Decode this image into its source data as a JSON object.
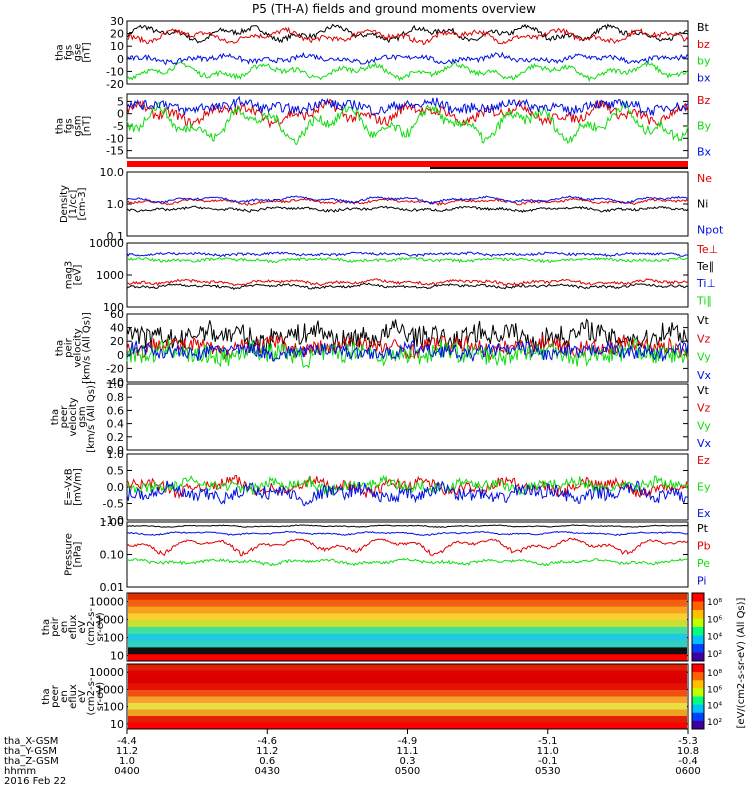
{
  "title": "P5 (TH-A) fields and ground moments overview",
  "colors": {
    "black": "#000000",
    "red": "#e00000",
    "green": "#10dd10",
    "blue": "#0010e0"
  },
  "chart_data": [
    {
      "type": "line",
      "id": "fgs_gse",
      "ylabel_lines": [
        "tha",
        "fgs",
        "gse",
        "[nT]"
      ],
      "ylim": [
        -20,
        30
      ],
      "yticks": [
        "30",
        "20",
        "10",
        "0",
        "-10",
        "-20"
      ],
      "series": [
        {
          "name": "Bt",
          "color": "black",
          "base": 20,
          "amp": 6,
          "noise": 1
        },
        {
          "name": "bz",
          "color": "red",
          "base": 18,
          "amp": 5,
          "noise": 1
        },
        {
          "name": "by",
          "color": "green",
          "base": -10,
          "amp": 6,
          "noise": 1
        },
        {
          "name": "bx",
          "color": "blue",
          "base": 0,
          "amp": 3,
          "noise": 1
        }
      ]
    },
    {
      "type": "line",
      "id": "fgs_gsm",
      "ylabel_lines": [
        "tha",
        "fgs",
        "gsm",
        "[nT]"
      ],
      "ylim": [
        -18,
        8
      ],
      "yticks": [
        "5",
        "0",
        "-5",
        "-10",
        "-15"
      ],
      "series": [
        {
          "name": "Bz",
          "color": "red",
          "base": 0,
          "amp": 4,
          "noise": 1
        },
        {
          "name": "By",
          "color": "green",
          "base": -4,
          "amp": 7,
          "noise": 1
        },
        {
          "name": "Bx",
          "color": "blue",
          "base": 3,
          "amp": 2,
          "noise": 1
        }
      ]
    },
    {
      "type": "line",
      "id": "density",
      "scale": "log",
      "ylabel_lines": [
        "Density",
        "[1/cc]",
        "[cm-3]"
      ],
      "ylim": [
        0.1,
        10
      ],
      "yticks": [
        "10.0",
        "1.0",
        "0.1"
      ],
      "series": [
        {
          "name": "Ne",
          "color": "red",
          "base": 1.2,
          "amp": 0.2,
          "noise": 0.05
        },
        {
          "name": "Ni",
          "color": "black",
          "base": 0.7,
          "amp": 0.1,
          "noise": 0.03
        },
        {
          "name": "Npot",
          "color": "blue",
          "base": 1.4,
          "amp": 0.3,
          "noise": 0.05
        }
      ]
    },
    {
      "type": "line",
      "id": "temp",
      "scale": "log",
      "ylabel_lines": [
        "mag3",
        "[eV]"
      ],
      "ylim": [
        100,
        10000
      ],
      "yticks": [
        "10000",
        "1000",
        "100"
      ],
      "series": [
        {
          "name": "Te⊥",
          "color": "red",
          "base": 600,
          "amp": 100,
          "noise": 30
        },
        {
          "name": "Te∥",
          "color": "black",
          "base": 450,
          "amp": 60,
          "noise": 20
        },
        {
          "name": "Ti⊥",
          "color": "blue",
          "base": 4500,
          "amp": 400,
          "noise": 200
        },
        {
          "name": "Ti∥",
          "color": "green",
          "base": 3000,
          "amp": 300,
          "noise": 150
        }
      ]
    },
    {
      "type": "line",
      "id": "peir_velocity",
      "ylabel_lines": [
        "tha",
        "peir",
        "velocity",
        "[km/s (All Qs)]"
      ],
      "ylim": [
        -40,
        60
      ],
      "yticks": [
        "60",
        "40",
        "20",
        "0",
        "-20",
        "-40"
      ],
      "series": [
        {
          "name": "Vt",
          "color": "black",
          "base": 28,
          "amp": 10,
          "noise": 8
        },
        {
          "name": "Vz",
          "color": "red",
          "base": 12,
          "amp": 8,
          "noise": 6
        },
        {
          "name": "Vy",
          "color": "green",
          "base": 2,
          "amp": 8,
          "noise": 7
        },
        {
          "name": "Vx",
          "color": "blue",
          "base": 5,
          "amp": 6,
          "noise": 5
        }
      ]
    },
    {
      "type": "line",
      "id": "peer_velocity",
      "ylabel_lines": [
        "tha",
        "peer",
        "velocity",
        "gsm",
        "[km/s (All Qs)]"
      ],
      "ylim": [
        0,
        1
      ],
      "yticks": [
        "1.0",
        "0.8",
        "0.6",
        "0.4",
        "0.2",
        "0.0"
      ],
      "series": [
        {
          "name": "Vt",
          "color": "black"
        },
        {
          "name": "Vz",
          "color": "red"
        },
        {
          "name": "Vy",
          "color": "green"
        },
        {
          "name": "Vx",
          "color": "blue"
        }
      ]
    },
    {
      "type": "line",
      "id": "efield",
      "ylabel_lines": [
        "E=-VxB",
        "[mV/m]"
      ],
      "ylim": [
        -1,
        1
      ],
      "yticks": [
        "1.0",
        "0.5",
        "0.0",
        "-0.5",
        "-1.0"
      ],
      "series": [
        {
          "name": "Ez",
          "color": "red",
          "base": 0.02,
          "amp": 0.2,
          "noise": 0.08
        },
        {
          "name": "Ey",
          "color": "green",
          "base": 0.05,
          "amp": 0.15,
          "noise": 0.08
        },
        {
          "name": "Ex",
          "color": "blue",
          "base": -0.2,
          "amp": 0.2,
          "noise": 0.1
        }
      ]
    },
    {
      "type": "line",
      "id": "pressure",
      "scale": "log",
      "ylabel_lines": [
        "Pressure",
        "[nPa]"
      ],
      "ylim": [
        0.01,
        1
      ],
      "yticks": [
        "1.00",
        "0.10",
        "0.01"
      ],
      "series": [
        {
          "name": "Pt",
          "color": "black",
          "base": 0.75,
          "amp": 0.05,
          "noise": 0.01
        },
        {
          "name": "Pb",
          "color": "red",
          "base": 0.2,
          "amp": 0.1,
          "noise": 0.01
        },
        {
          "name": "Pe",
          "color": "green",
          "base": 0.06,
          "amp": 0.01,
          "noise": 0.003
        },
        {
          "name": "Pi",
          "color": "blue",
          "base": 0.45,
          "amp": 0.05,
          "noise": 0.01
        }
      ]
    },
    {
      "type": "heatmap",
      "id": "peir_eflux",
      "scale": "log",
      "ylabel_lines": [
        "tha",
        "peir",
        "en",
        "eflux",
        "eV",
        "(cm2-s-",
        "sr-eV)"
      ],
      "ylim": [
        5,
        30000
      ],
      "yticks": [
        "10000",
        "1000",
        "100",
        "10"
      ]
    },
    {
      "type": "heatmap",
      "id": "peer_eflux",
      "scale": "log",
      "ylabel_lines": [
        "tha",
        "peer",
        "en",
        "eflux",
        "eV",
        "(cm2-s-",
        "sr-eV)"
      ],
      "ylim": [
        5,
        30000
      ],
      "yticks": [
        "10000",
        "1000",
        "100",
        "10"
      ]
    }
  ],
  "colorbar": {
    "label": "[eV/(cm2-s-sr-eV) (All Qs)]",
    "top_ticks": [
      "10⁸",
      "10⁶",
      "10⁴",
      "10²"
    ],
    "bottom_ticks": [
      "10⁸",
      "10⁶",
      "10⁴",
      "10²"
    ]
  },
  "x_axis": {
    "row_labels": [
      "tha_X-GSM",
      "tha_Y-GSM",
      "tha_Z-GSM",
      "hhmm",
      "2016 Feb 22"
    ],
    "columns": [
      [
        "-4.4",
        "11.2",
        "1.0",
        "0400"
      ],
      [
        "-4.6",
        "11.2",
        "0.6",
        "0430"
      ],
      [
        "-4.9",
        "11.1",
        "0.3",
        "0500"
      ],
      [
        "-5.1",
        "11.0",
        "-0.1",
        "0530"
      ],
      [
        "-5.3",
        "10.8",
        "-0.4",
        "0600"
      ]
    ]
  }
}
